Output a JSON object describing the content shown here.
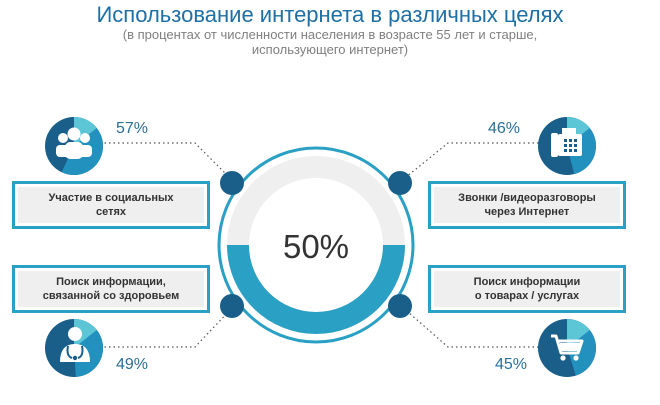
{
  "title": "Использование интернета в различных целях",
  "subtitle_line1": "(в процентах от численности населения в возрасте 55 лет и старше,",
  "subtitle_line2": "использующего интернет)",
  "center_label": "50%",
  "colors": {
    "dark": "#1a5f8a",
    "mid": "#2391be",
    "light": "#5cc6d6",
    "ring": "#2aa0c4",
    "track": "#efefef"
  },
  "chart_data": {
    "type": "donut",
    "title": "Использование интернета в различных целях",
    "subtitle": "(в процентах от численности населения в возрасте 55 лет и старше, использующего интернет)",
    "center": {
      "label": "50%",
      "value": 50
    },
    "categories": [
      {
        "line1": "Участие в социальных",
        "line2": "сетях",
        "pct_label": "57%",
        "value": 57,
        "icon": "people-icon"
      },
      {
        "line1": "Звонки /видеоразговоры",
        "line2": "через Интернет",
        "pct_label": "46%",
        "value": 46,
        "icon": "phone-fax-icon"
      },
      {
        "line1": "Поиск информации,",
        "line2": "связанной со здоровьем",
        "pct_label": "49%",
        "value": 49,
        "icon": "doctor-icon"
      },
      {
        "line1": "Поиск информации",
        "line2": "о товарах / услугах",
        "pct_label": "45%",
        "value": 45,
        "icon": "shopping-cart-icon"
      }
    ]
  }
}
